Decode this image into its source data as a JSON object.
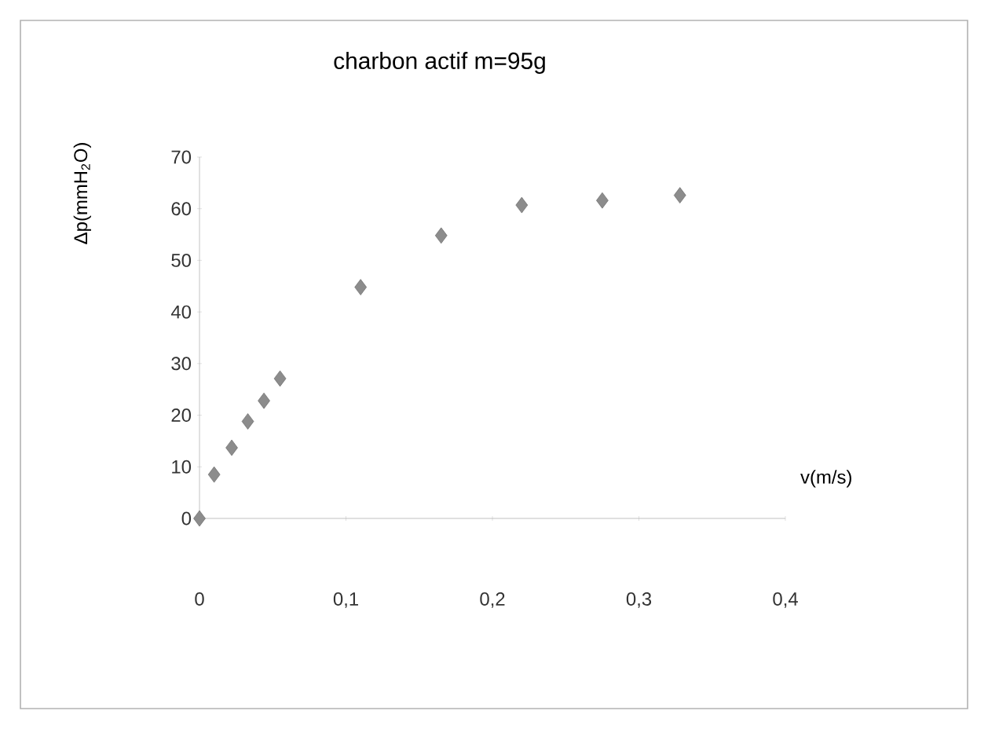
{
  "chart_data": {
    "type": "scatter",
    "title": "charbon actif m=95g",
    "xlabel": "v(m/s)",
    "ylabel": "Δp(mmH$_{2}$O)",
    "x": [
      0,
      0.01,
      0.022,
      0.033,
      0.044,
      0.055,
      0.11,
      0.165,
      0.22,
      0.275,
      0.328
    ],
    "series": [
      {
        "color": "#8c8c8c",
        "values": [
          0,
          8.5,
          13.7,
          18.8,
          22.8,
          27.1,
          44.8,
          54.8,
          60.7,
          61.6,
          62.6
        ]
      }
    ],
    "xlim": [
      0,
      0.4
    ],
    "ylim": [
      0,
      70
    ],
    "xticks": [
      0,
      {
        "value": 0.1,
        "label": "0,1"
      },
      {
        "value": 0.2,
        "label": "0,2"
      },
      {
        "value": 0.3,
        "label": "0,3"
      },
      {
        "value": 0.4,
        "label": "0,4"
      }
    ],
    "yticks": [
      0,
      10,
      20,
      30,
      40,
      50,
      60,
      70
    ],
    "marker": "diamond",
    "grid": false
  }
}
